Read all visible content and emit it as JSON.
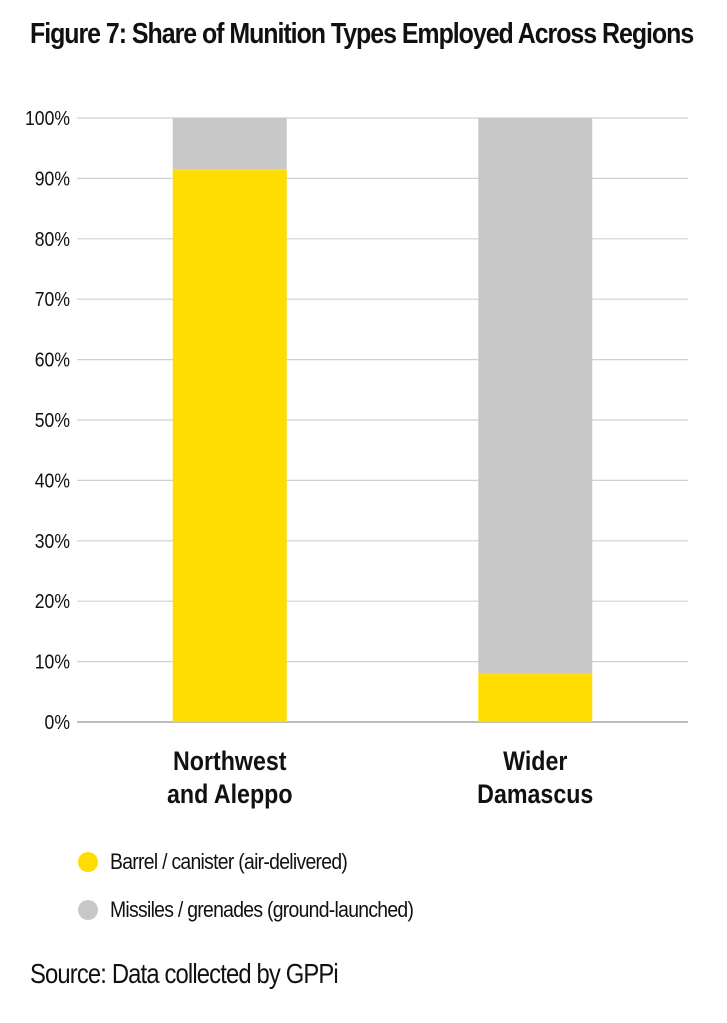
{
  "chart_data": {
    "type": "bar",
    "stacked": true,
    "title": "Figure 7: Share of Munition Types Employed Across Regions",
    "categories": [
      "Northwest\nand Aleppo",
      "Wider\nDamascus"
    ],
    "series": [
      {
        "name": "Barrel / canister (air-delivered)",
        "color": "#FFDD00",
        "values": [
          91.5,
          8
        ]
      },
      {
        "name": "Missiles / grenades (ground-launched)",
        "color": "#C8C8C8",
        "values": [
          8.5,
          92
        ]
      }
    ],
    "ylim": [
      0,
      100
    ],
    "yticks": [
      "0%",
      "10%",
      "20%",
      "30%",
      "40%",
      "50%",
      "60%",
      "70%",
      "80%",
      "90%",
      "100%"
    ],
    "grid": true,
    "legend_position": "bottom-left",
    "source": "Source: Data collected by GPPi"
  }
}
